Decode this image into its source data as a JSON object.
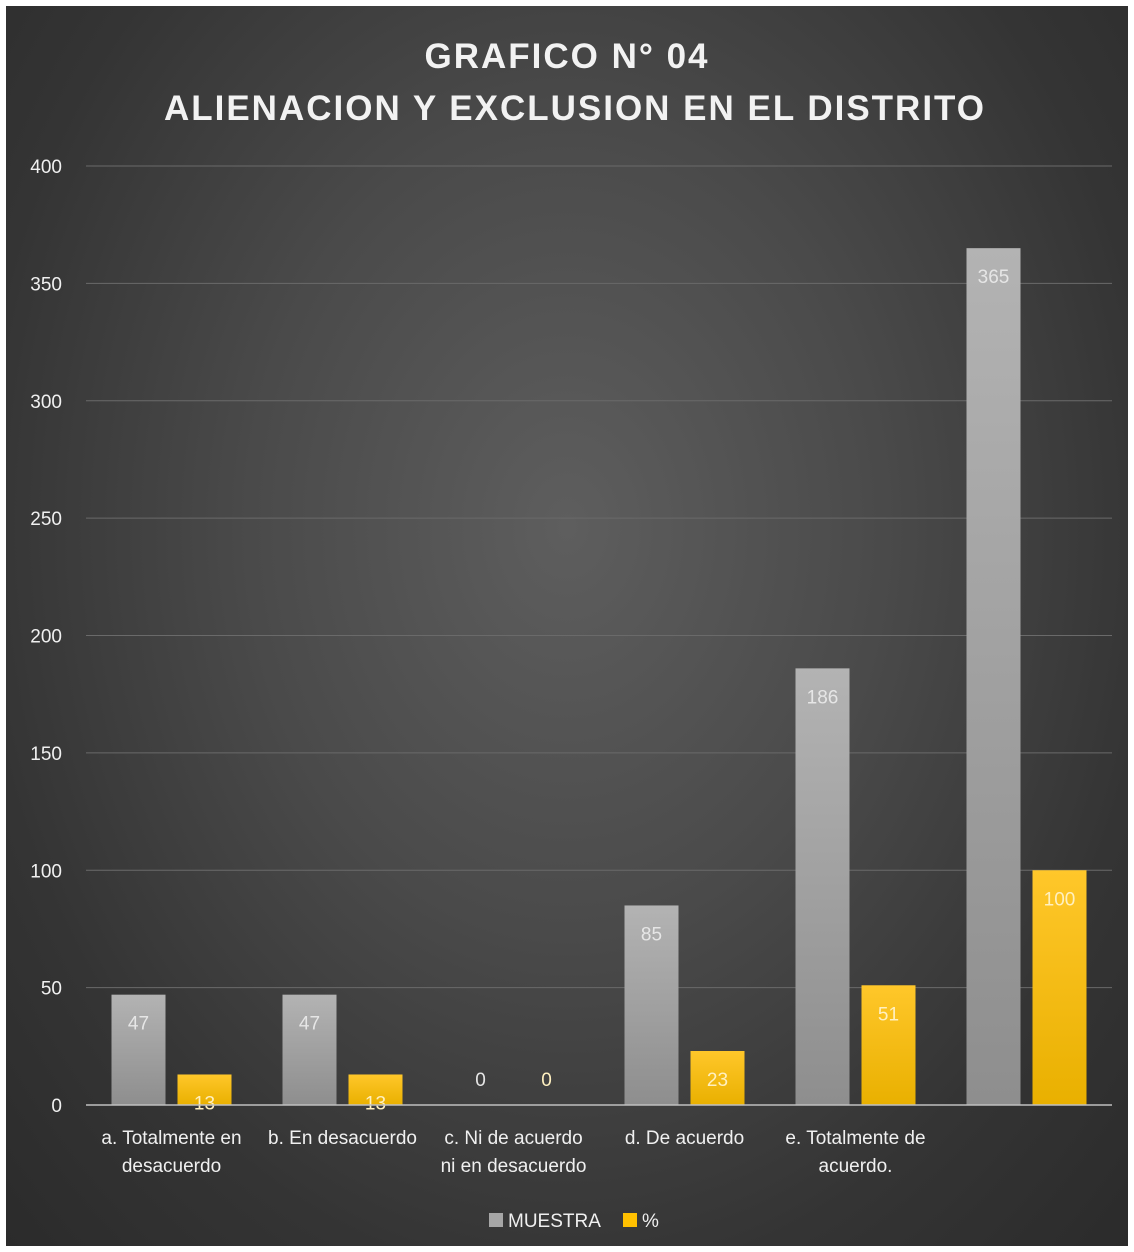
{
  "chart_data": {
    "type": "bar",
    "title": "GRAFICO N° 04",
    "subtitle": "ALIENACION Y EXCLUSION EN EL DISTRITO",
    "categories": [
      [
        "a. Totalmente en",
        "desacuerdo"
      ],
      [
        "b. En desacuerdo"
      ],
      [
        "c. Ni de acuerdo",
        "ni en desacuerdo"
      ],
      [
        "d. De acuerdo"
      ],
      [
        "e. Totalmente de",
        "acuerdo."
      ],
      [
        ""
      ]
    ],
    "series": [
      {
        "name": "MUESTRA",
        "values": [
          47,
          47,
          0,
          85,
          186,
          365
        ],
        "color": "#a6a6a6"
      },
      {
        "name": "%",
        "values": [
          13,
          13,
          0,
          23,
          51,
          100
        ],
        "color": "#ffc000"
      }
    ],
    "ylim": [
      0,
      400
    ],
    "yticks": [
      0,
      50,
      100,
      150,
      200,
      250,
      300,
      350,
      400
    ],
    "grid": true,
    "data_labels": true,
    "legend_position": "bottom"
  }
}
